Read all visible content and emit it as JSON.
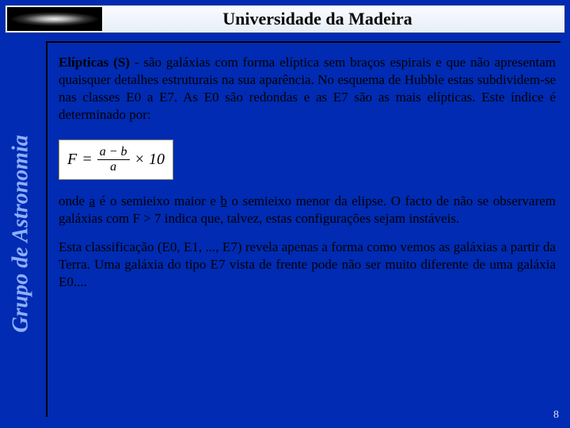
{
  "header": {
    "title": "Universidade da Madeira"
  },
  "sidebar": {
    "label": "Grupo de Astronomia"
  },
  "content": {
    "p1_lead": "Elípticas (S)",
    "p1_rest": " - são galáxias com forma elíptica sem braços espirais e que não apresentam quaisquer detalhes estruturais na sua aparência. No esquema de Hubble estas subdividem-se nas classes E0 a E7. As E0 são redondas e as E7 são as mais elípticas. Este índice é determinado por:",
    "formula": {
      "lhs": "F",
      "eq": "=",
      "num": "a − b",
      "den": "a",
      "times": "× 10"
    },
    "p2_a": "onde ",
    "p2_u1": "a",
    "p2_b": " é o semieixo maior e ",
    "p2_u2": "b",
    "p2_c": " o semieixo menor da elipse. O facto de não se observarem galáxias com F > 7 indica que, talvez, estas configurações sejam instáveis.",
    "p3": "Esta classificação (E0, E1, ..., E7) revela apenas a forma como vemos as galáxias a partir da Terra. Uma galáxia do tipo E7 vista de frente pode não ser muito diferente de uma galáxia E0...."
  },
  "page_number": "8"
}
